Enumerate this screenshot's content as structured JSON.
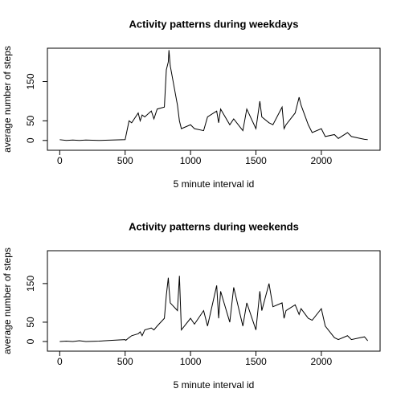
{
  "chart_data": [
    {
      "type": "line",
      "title": "Activity patterns during weekdays",
      "x_label": "5 minute interval id",
      "y_label": "average number of steps",
      "x": [
        0,
        50,
        100,
        150,
        200,
        300,
        400,
        500,
        505,
        530,
        550,
        600,
        615,
        630,
        650,
        700,
        720,
        745,
        800,
        815,
        830,
        835,
        845,
        900,
        915,
        930,
        1000,
        1030,
        1100,
        1130,
        1200,
        1215,
        1230,
        1300,
        1330,
        1400,
        1430,
        1500,
        1530,
        1545,
        1600,
        1630,
        1700,
        1715,
        1730,
        1800,
        1830,
        1845,
        1900,
        1930,
        2000,
        2030,
        2100,
        2130,
        2200,
        2230,
        2300,
        2330,
        2355
      ],
      "series": [
        {
          "color": "#000000",
          "values": [
            2,
            0,
            1,
            0,
            1,
            0,
            1,
            2,
            10,
            50,
            45,
            70,
            50,
            65,
            60,
            75,
            55,
            80,
            85,
            180,
            200,
            230,
            190,
            90,
            50,
            30,
            40,
            30,
            25,
            60,
            75,
            45,
            80,
            40,
            55,
            25,
            80,
            30,
            100,
            60,
            45,
            40,
            85,
            30,
            40,
            70,
            110,
            90,
            40,
            20,
            30,
            10,
            15,
            5,
            20,
            10,
            5,
            3,
            2
          ]
        }
      ],
      "xlim": [
        -94.2,
        2449.2
      ],
      "xticks": [
        0,
        500,
        1000,
        1500,
        2000
      ],
      "ylim": [
        -25,
        235
      ],
      "yticks": [
        0,
        50,
        150
      ]
    },
    {
      "type": "line",
      "title": "Activity patterns during weekends",
      "x_label": "5 minute interval id",
      "y_label": "average number of steps",
      "x": [
        0,
        50,
        100,
        150,
        200,
        300,
        400,
        500,
        505,
        530,
        550,
        600,
        615,
        630,
        650,
        700,
        720,
        745,
        800,
        815,
        830,
        835,
        845,
        900,
        915,
        930,
        1000,
        1030,
        1100,
        1130,
        1200,
        1215,
        1230,
        1300,
        1330,
        1400,
        1430,
        1500,
        1530,
        1545,
        1600,
        1630,
        1700,
        1715,
        1730,
        1800,
        1830,
        1845,
        1900,
        1930,
        2000,
        2030,
        2100,
        2130,
        2200,
        2230,
        2300,
        2330,
        2355
      ],
      "series": [
        {
          "color": "#000000",
          "values": [
            0,
            1,
            0,
            2,
            0,
            1,
            3,
            5,
            3,
            10,
            15,
            20,
            25,
            15,
            30,
            35,
            30,
            40,
            60,
            120,
            165,
            140,
            100,
            80,
            170,
            30,
            60,
            45,
            80,
            40,
            145,
            60,
            130,
            50,
            140,
            40,
            100,
            30,
            130,
            80,
            150,
            90,
            100,
            60,
            80,
            95,
            70,
            85,
            60,
            55,
            85,
            40,
            10,
            5,
            15,
            5,
            10,
            12,
            2
          ]
        }
      ],
      "xlim": [
        -94.2,
        2449.2
      ],
      "xticks": [
        0,
        500,
        1000,
        1500,
        2000
      ],
      "ylim": [
        -25,
        235
      ],
      "yticks": [
        0,
        50,
        150
      ]
    }
  ]
}
